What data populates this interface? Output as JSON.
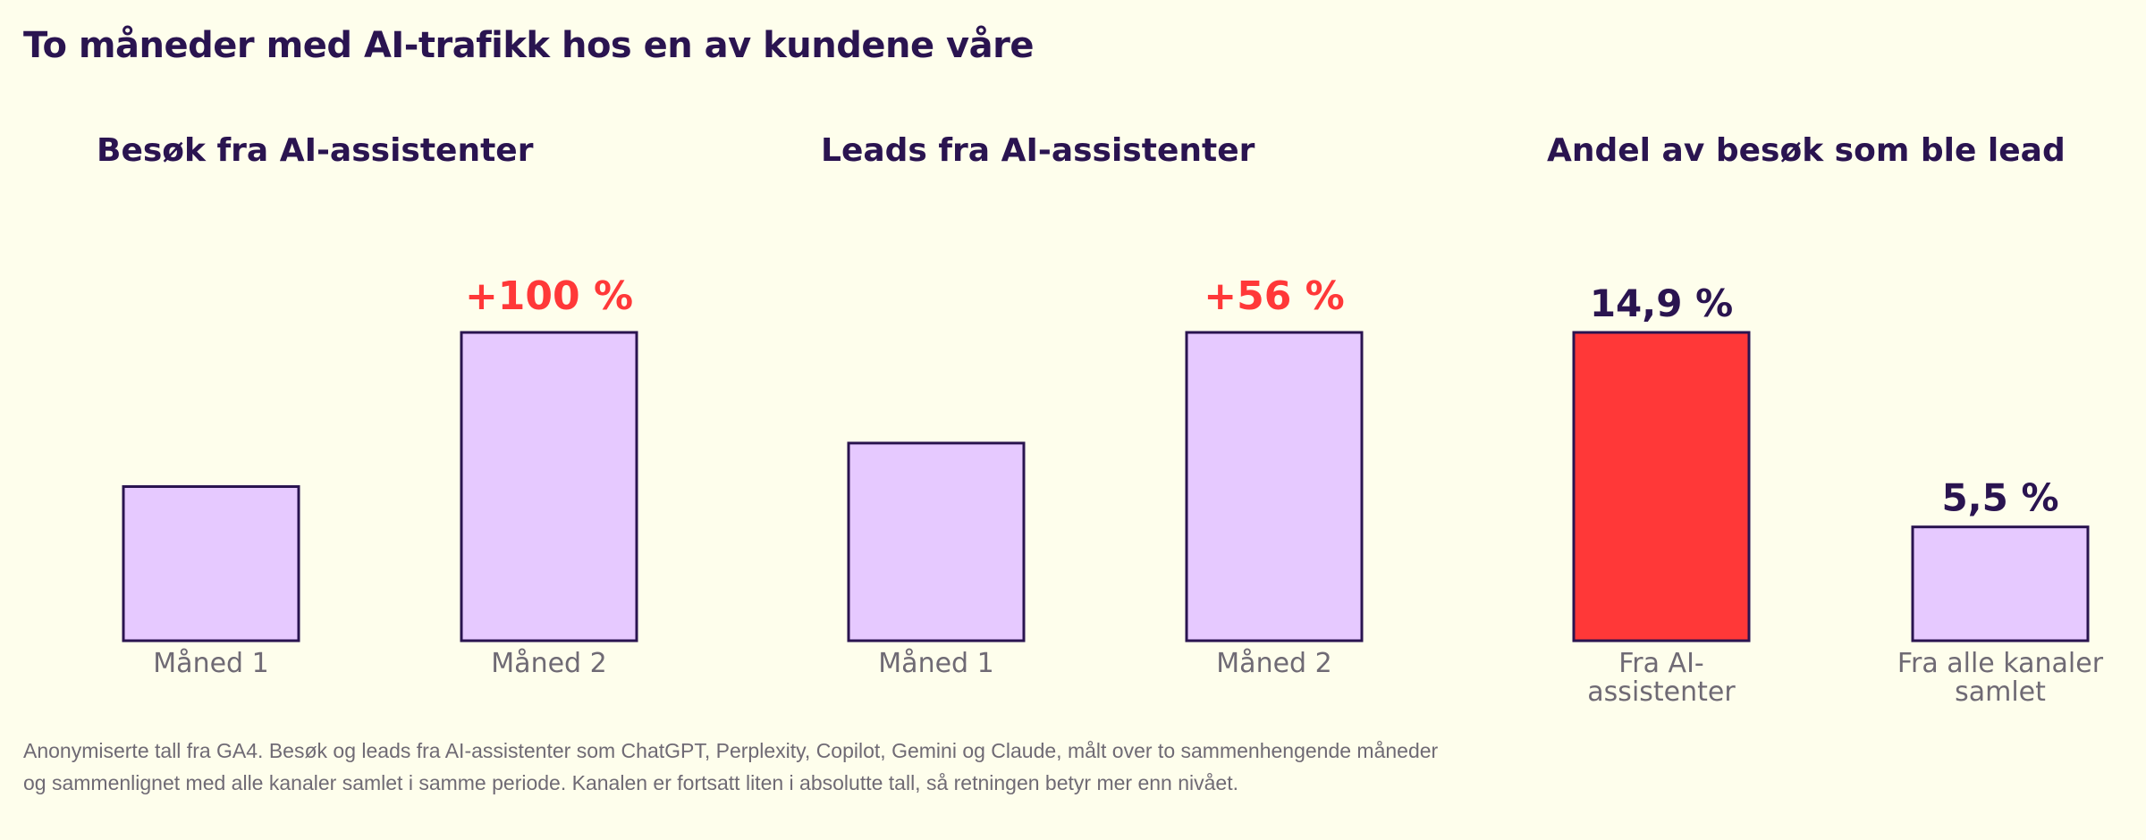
{
  "title": "To måneder med AI-trafikk hos en av kundene våre",
  "footnote": {
    "line1": "Anonymiserte tall fra GA4. Besøk og leads fra AI-assistenter som ChatGPT, Perplexity, Copilot, Gemini og Claude, målt over to sammenhengende måneder",
    "line2": "og sammenlignet med alle kanaler samlet i samme periode. Kanalen er fortsatt liten i absolutte tall, så retningen betyr mer enn nivået."
  },
  "colors": {
    "bar_fill": "#e6c9ff",
    "bar_stroke": "#2a1450",
    "highlight": "#ff3838",
    "title": "#2a1450",
    "category": "#6f6a74"
  },
  "chart_data": [
    {
      "type": "bar",
      "title": "Besøk fra AI-assistenter",
      "categories": [
        [
          "Måned 1"
        ],
        [
          "Måned 2"
        ]
      ],
      "values": [
        50,
        100
      ],
      "ylim": [
        0,
        100
      ],
      "annotation": {
        "text": "+100 %",
        "index": 1,
        "color": "#ff3838"
      },
      "bar_colors": [
        "#e6c9ff",
        "#e6c9ff"
      ]
    },
    {
      "type": "bar",
      "title": "Leads fra AI-assistenter",
      "categories": [
        [
          "Måned 1"
        ],
        [
          "Måned 2"
        ]
      ],
      "values": [
        64.1,
        100
      ],
      "ylim": [
        0,
        100
      ],
      "annotation": {
        "text": "+56 %",
        "index": 1,
        "color": "#ff3838"
      },
      "bar_colors": [
        "#e6c9ff",
        "#e6c9ff"
      ]
    },
    {
      "type": "bar",
      "title": "Andel av besøk som ble lead",
      "categories": [
        [
          "Fra AI-",
          "assistenter"
        ],
        [
          "Fra alle kanaler",
          "samlet"
        ]
      ],
      "values": [
        14.9,
        5.5
      ],
      "value_labels": [
        "14,9 %",
        "5,5 %"
      ],
      "ylim": [
        0,
        14.9
      ],
      "bar_colors": [
        "#ff3838",
        "#e6c9ff"
      ]
    }
  ]
}
